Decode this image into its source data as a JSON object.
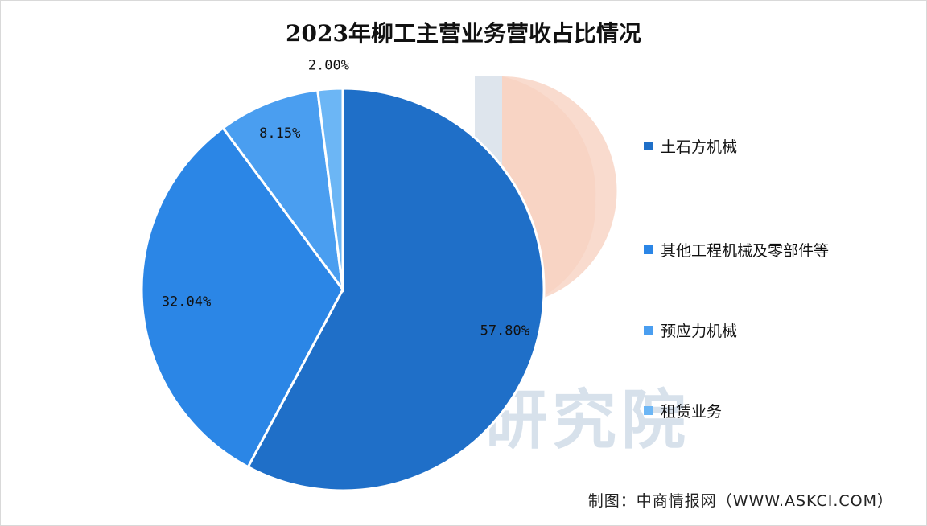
{
  "title": "2023年柳工主营业务营收占比情况",
  "source": "制图：中商情报网（WWW.ASKCI.COM）",
  "watermark": "研究院",
  "colors": {
    "accent_orange": "#f7d2c2",
    "accent_gray": "#d6dfe8"
  },
  "chart_data": {
    "type": "pie",
    "title": "2023年柳工主营业务营收占比情况",
    "legend_position": "right",
    "start_angle_deg": 0,
    "slices": [
      {
        "name": "土石方机械",
        "value": 57.8,
        "label": "57.80%",
        "color": "#1f6fc8"
      },
      {
        "name": "其他工程机械及零部件等",
        "value": 32.04,
        "label": "32.04%",
        "color": "#2b86e6"
      },
      {
        "name": "预应力机械",
        "value": 8.15,
        "label": "8.15%",
        "color": "#4a9ef0"
      },
      {
        "name": "租赁业务",
        "value": 2.0,
        "label": "2.00%",
        "color": "#6cb6f5"
      }
    ]
  }
}
